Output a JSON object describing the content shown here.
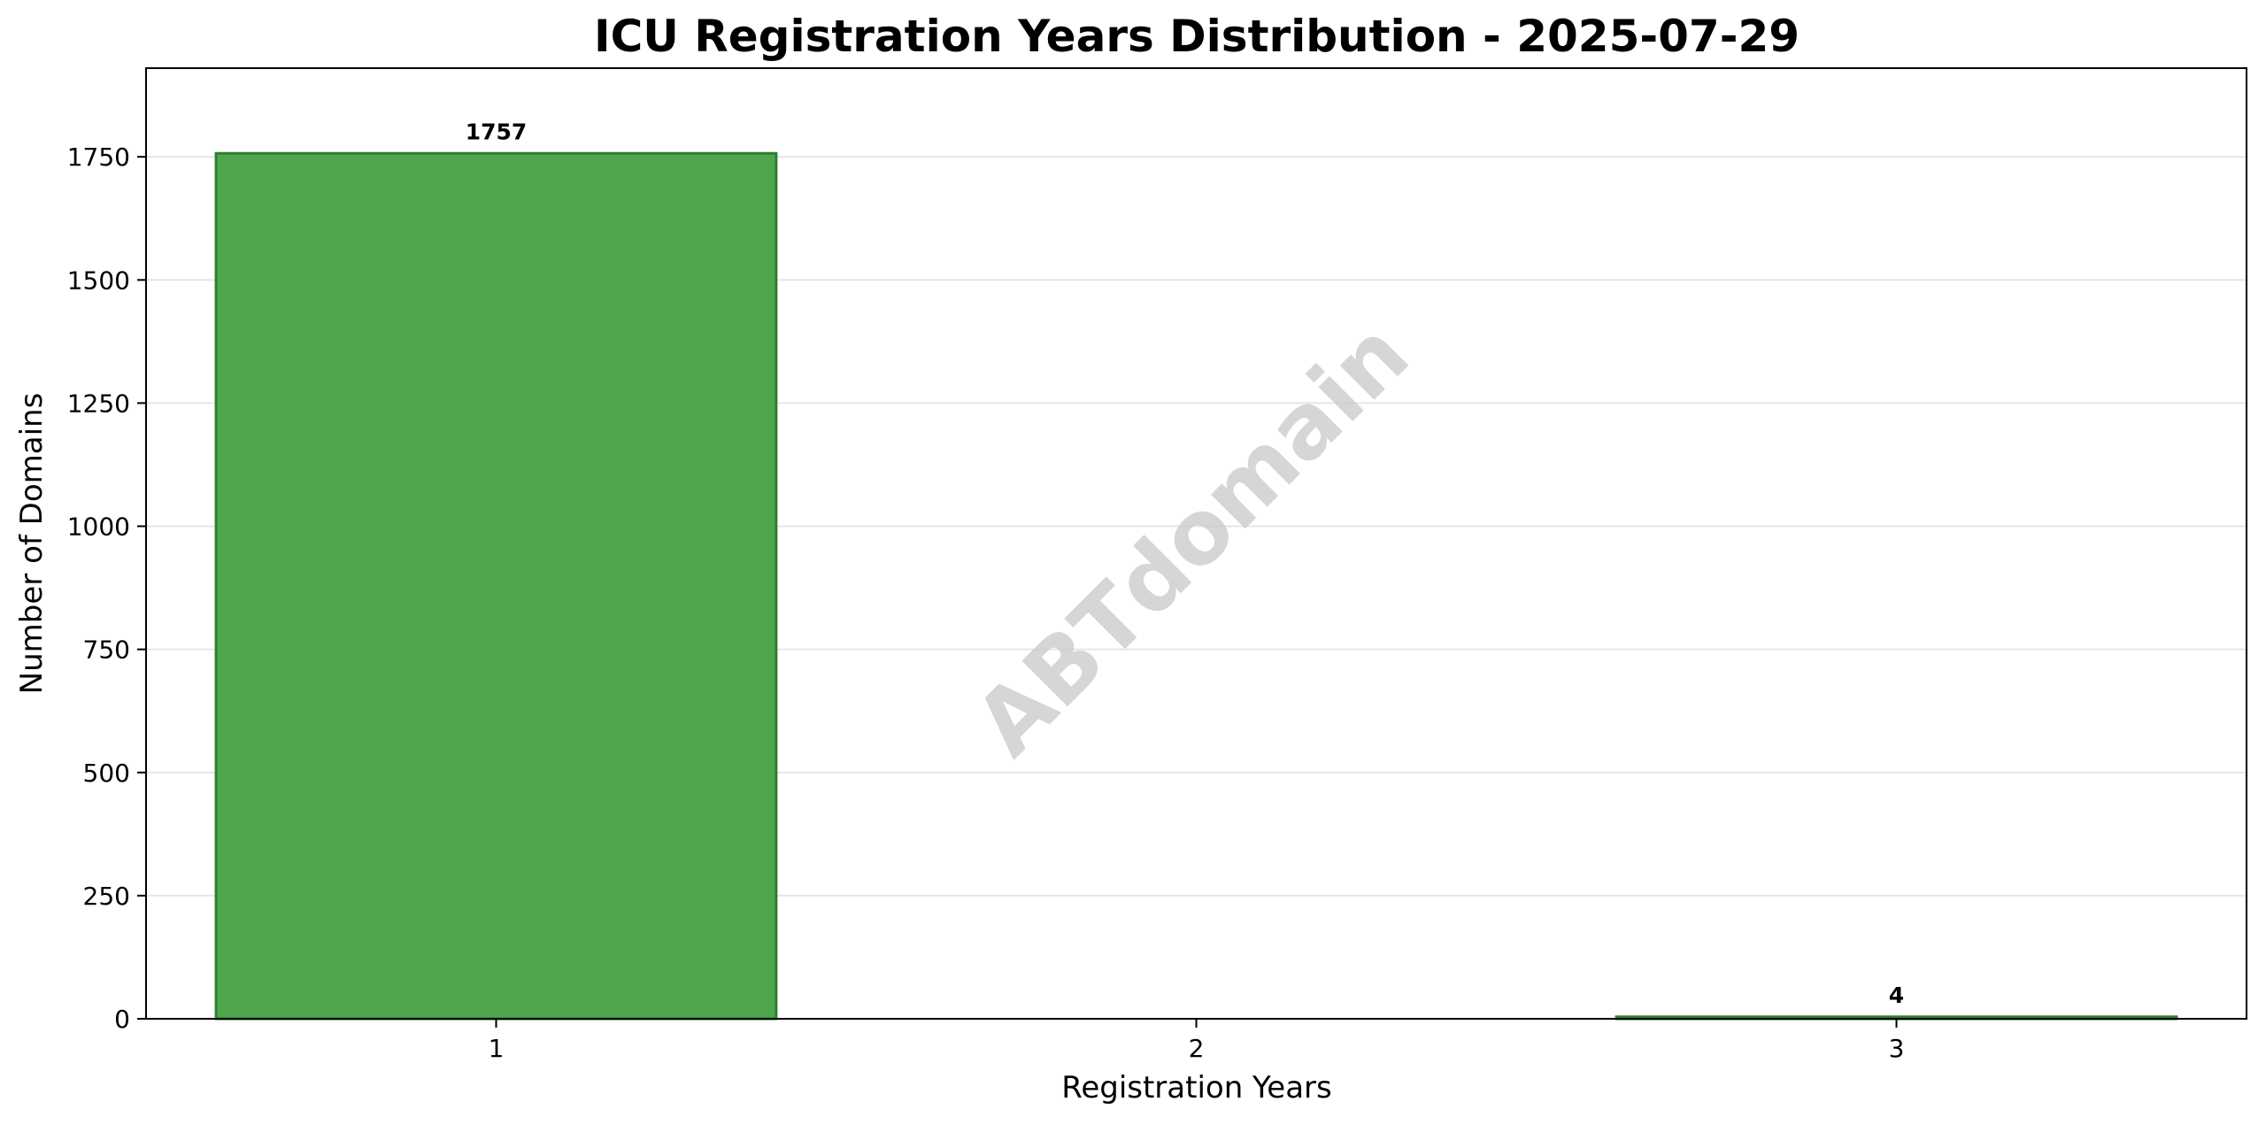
{
  "chart_data": {
    "type": "bar",
    "title": "ICU Registration Years Distribution - 2025-07-29",
    "xlabel": "Registration Years",
    "ylabel": "Number of Domains",
    "categories": [
      "1",
      "2",
      "3"
    ],
    "values": [
      1757,
      0,
      4
    ],
    "data_labels": [
      "1757",
      "",
      "4"
    ],
    "ylim": [
      0,
      1930
    ],
    "yticks": [
      0,
      250,
      500,
      750,
      1000,
      1250,
      1500,
      1750
    ],
    "ytick_labels": [
      "0",
      "250",
      "500",
      "750",
      "1000",
      "1250",
      "1500",
      "1750"
    ],
    "grid": "y",
    "legend": "none",
    "bar_color": "#4ea64e",
    "bar_edge_color": "#2e7d32",
    "grid_color": "#e6e6e6"
  },
  "watermark": {
    "text": "ABTdomain"
  }
}
